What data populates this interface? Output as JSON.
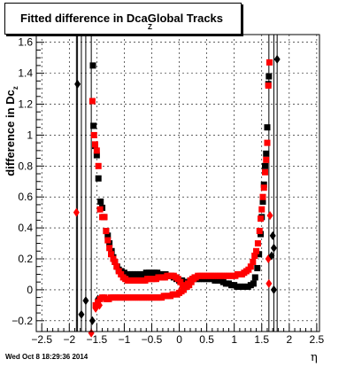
{
  "chart_data": {
    "type": "scatter",
    "title": "Fitted difference in Dca",
    "title_subscript": "Z",
    "title_suffix": "Global Tracks",
    "xlabel": "η",
    "ylabel": "difference in Dc",
    "ylabel_subscript": "z",
    "xlim": [
      -2.6,
      2.55
    ],
    "ylim": [
      -0.27,
      1.65
    ],
    "xticks": [
      -2.5,
      -2,
      -1.5,
      -1,
      -0.5,
      0,
      0.5,
      1,
      1.5,
      2,
      2.5
    ],
    "xtick_labels": [
      "−2.5",
      "−2",
      "−1.5",
      "−1",
      "−0.5",
      "0",
      "0.5",
      "1",
      "1.5",
      "2",
      "2.5"
    ],
    "yticks": [
      -0.2,
      0,
      0.2,
      0.4,
      0.6,
      0.8,
      1,
      1.2,
      1.4,
      1.6
    ],
    "ytick_labels": [
      "−0.2",
      "0",
      "0.2",
      "0.4",
      "0.6",
      "0.8",
      "1",
      "1.2",
      "1.4",
      "1.6"
    ],
    "grid": true,
    "timestamp": "Wed Oct  8 18:29:36 2014",
    "colors": {
      "black_series": "#000000",
      "red_series": "#ff0000"
    },
    "series": [
      {
        "marker": "diamond",
        "color": "#000000",
        "points": [
          [
            -1.85,
            1.33
          ],
          [
            -1.78,
            -0.16
          ],
          [
            -1.7,
            -0.07
          ],
          [
            1.72,
            -0.0
          ],
          [
            1.78,
            1.49
          ]
        ],
        "error_bars": [
          [
            -1.85,
            -0.27,
            1.65
          ],
          [
            -1.78,
            -0.27,
            1.65
          ],
          [
            -1.7,
            -0.27,
            1.65
          ],
          [
            1.72,
            -0.27,
            1.65
          ],
          [
            1.78,
            -0.27,
            1.65
          ]
        ]
      },
      {
        "marker": "diamond",
        "color": "#ff0000",
        "points": [
          [
            -1.87,
            0.5
          ],
          [
            -1.6,
            -0.28
          ],
          [
            -1.52,
            -0.12
          ],
          [
            -1.45,
            -0.1
          ],
          [
            1.63,
            0.04
          ],
          [
            1.65,
            0.48
          ],
          [
            1.62,
            0.2
          ]
        ],
        "error_bars": [
          [
            -1.87,
            -0.27,
            1.65
          ],
          [
            -1.6,
            -0.27,
            1.65
          ],
          [
            1.63,
            -0.27,
            1.65
          ]
        ]
      },
      {
        "marker": "diamond",
        "color": "#000000",
        "points": [
          [
            1.68,
            0.22
          ],
          [
            1.72,
            0.27
          ],
          [
            1.7,
            0.35
          ],
          [
            -1.58,
            -0.2
          ],
          [
            -1.48,
            -0.06
          ]
        ],
        "error_bars": []
      },
      {
        "marker": "square",
        "color": "#000000",
        "points": [
          [
            -1.57,
            1.45
          ],
          [
            -1.56,
            1.06
          ],
          [
            -1.53,
            0.93
          ],
          [
            -1.5,
            0.87
          ],
          [
            -1.47,
            0.72
          ],
          [
            -1.43,
            0.57
          ],
          [
            -1.4,
            0.53
          ],
          [
            -1.37,
            0.47
          ],
          [
            -1.33,
            0.38
          ],
          [
            -1.3,
            0.35
          ],
          [
            -1.27,
            0.3
          ],
          [
            -1.23,
            0.25
          ],
          [
            -1.2,
            0.21
          ],
          [
            -1.17,
            0.18
          ],
          [
            -1.13,
            0.15
          ],
          [
            -1.1,
            0.13
          ],
          [
            -1.05,
            0.12
          ],
          [
            -1.0,
            0.11
          ],
          [
            -0.95,
            0.1
          ],
          [
            -0.9,
            0.1
          ],
          [
            -0.85,
            0.1
          ],
          [
            -0.8,
            0.1
          ],
          [
            -0.75,
            0.1
          ],
          [
            -0.7,
            0.1
          ],
          [
            -0.65,
            0.1
          ],
          [
            -0.6,
            0.11
          ],
          [
            -0.55,
            0.11
          ],
          [
            -0.5,
            0.11
          ],
          [
            -0.45,
            0.11
          ],
          [
            -0.4,
            0.11
          ],
          [
            -0.35,
            0.1
          ],
          [
            -0.3,
            0.1
          ],
          [
            -0.25,
            0.1
          ],
          [
            -0.2,
            0.09
          ],
          [
            -0.15,
            0.09
          ],
          [
            -0.1,
            0.08
          ],
          [
            -0.05,
            0.07
          ],
          [
            0.0,
            0.06
          ],
          [
            0.05,
            0.06
          ],
          [
            0.1,
            0.05
          ],
          [
            0.15,
            0.05
          ],
          [
            0.2,
            0.06
          ],
          [
            0.25,
            0.07
          ],
          [
            0.3,
            0.07
          ],
          [
            0.35,
            0.07
          ],
          [
            0.4,
            0.07
          ],
          [
            0.45,
            0.07
          ],
          [
            0.5,
            0.07
          ],
          [
            0.55,
            0.07
          ],
          [
            0.6,
            0.07
          ],
          [
            0.65,
            0.06
          ],
          [
            0.7,
            0.06
          ],
          [
            0.75,
            0.06
          ],
          [
            0.8,
            0.05
          ],
          [
            0.85,
            0.04
          ],
          [
            0.9,
            0.04
          ],
          [
            0.95,
            0.03
          ],
          [
            1.0,
            0.03
          ],
          [
            1.05,
            0.02
          ],
          [
            1.1,
            0.02
          ],
          [
            1.15,
            0.02
          ],
          [
            1.2,
            0.02
          ],
          [
            1.25,
            0.02
          ],
          [
            1.3,
            0.03
          ],
          [
            1.35,
            0.04
          ],
          [
            1.38,
            0.08
          ],
          [
            1.42,
            0.14
          ],
          [
            1.45,
            0.23
          ],
          [
            1.48,
            0.36
          ],
          [
            1.5,
            0.47
          ],
          [
            1.52,
            0.57
          ],
          [
            1.54,
            0.68
          ],
          [
            1.56,
            0.8
          ],
          [
            1.58,
            0.88
          ],
          [
            1.6,
            1.05
          ],
          [
            1.62,
            1.33
          ],
          [
            1.63,
            1.38
          ]
        ]
      },
      {
        "marker": "square",
        "color": "#ff0000",
        "points": [
          [
            -1.58,
            1.22
          ],
          [
            -1.55,
            1.0
          ],
          [
            -1.53,
            0.94
          ],
          [
            -1.5,
            0.9
          ],
          [
            -1.47,
            0.8
          ],
          [
            -1.44,
            0.52
          ],
          [
            -1.4,
            0.47
          ],
          [
            -1.36,
            0.47
          ],
          [
            -1.33,
            0.38
          ],
          [
            -1.3,
            0.32
          ],
          [
            -1.27,
            0.27
          ],
          [
            -1.24,
            0.23
          ],
          [
            -1.2,
            0.2
          ],
          [
            -1.17,
            0.18
          ],
          [
            -1.14,
            0.15
          ],
          [
            -1.1,
            0.12
          ],
          [
            -1.06,
            0.1
          ],
          [
            -1.02,
            0.08
          ],
          [
            -0.98,
            0.07
          ],
          [
            -0.94,
            0.06
          ],
          [
            -0.9,
            0.06
          ],
          [
            -0.86,
            0.06
          ],
          [
            -0.82,
            0.06
          ],
          [
            -0.78,
            0.06
          ],
          [
            -0.74,
            0.06
          ],
          [
            -0.7,
            0.06
          ],
          [
            -0.66,
            0.06
          ],
          [
            -0.62,
            0.06
          ],
          [
            -0.58,
            0.07
          ],
          [
            -0.54,
            0.07
          ],
          [
            -0.5,
            0.07
          ],
          [
            -0.46,
            0.07
          ],
          [
            -0.42,
            0.07
          ],
          [
            -0.38,
            0.08
          ],
          [
            -0.34,
            0.08
          ],
          [
            -0.3,
            0.08
          ],
          [
            -0.26,
            0.08
          ],
          [
            -0.22,
            0.09
          ],
          [
            -0.18,
            0.09
          ],
          [
            -0.14,
            0.09
          ],
          [
            -0.1,
            0.09
          ],
          [
            -0.06,
            0.08
          ],
          [
            -0.02,
            0.07
          ],
          [
            0.02,
            0.05
          ],
          [
            0.06,
            0.03
          ],
          [
            0.1,
            0.02
          ],
          [
            0.14,
            0.02
          ],
          [
            0.18,
            0.03
          ],
          [
            0.22,
            0.05
          ],
          [
            0.26,
            0.07
          ],
          [
            0.3,
            0.08
          ],
          [
            0.34,
            0.09
          ],
          [
            0.38,
            0.09
          ],
          [
            0.42,
            0.09
          ],
          [
            0.46,
            0.09
          ],
          [
            0.5,
            0.09
          ],
          [
            0.54,
            0.09
          ],
          [
            0.58,
            0.09
          ],
          [
            0.62,
            0.09
          ],
          [
            0.66,
            0.09
          ],
          [
            0.7,
            0.09
          ],
          [
            0.74,
            0.09
          ],
          [
            0.78,
            0.09
          ],
          [
            0.82,
            0.09
          ],
          [
            0.86,
            0.09
          ],
          [
            0.9,
            0.09
          ],
          [
            0.94,
            0.09
          ],
          [
            0.98,
            0.09
          ],
          [
            1.02,
            0.09
          ],
          [
            1.06,
            0.1
          ],
          [
            1.1,
            0.1
          ],
          [
            1.14,
            0.1
          ],
          [
            1.18,
            0.11
          ],
          [
            1.22,
            0.12
          ],
          [
            1.26,
            0.13
          ],
          [
            1.3,
            0.15
          ],
          [
            1.34,
            0.18
          ],
          [
            1.37,
            0.22
          ],
          [
            1.4,
            0.25
          ],
          [
            1.43,
            0.3
          ],
          [
            1.46,
            0.38
          ],
          [
            1.48,
            0.46
          ],
          [
            1.5,
            0.52
          ],
          [
            1.52,
            0.6
          ],
          [
            1.54,
            0.66
          ],
          [
            1.56,
            0.76
          ],
          [
            1.58,
            0.84
          ],
          [
            1.6,
            0.95
          ],
          [
            1.62,
            1.32
          ],
          [
            1.64,
            1.47
          ],
          [
            -1.52,
            -0.1
          ],
          [
            -1.48,
            -0.08
          ],
          [
            -1.44,
            -0.06
          ],
          [
            -1.4,
            -0.05
          ],
          [
            -1.36,
            -0.05
          ],
          [
            -1.32,
            -0.06
          ],
          [
            -1.28,
            -0.06
          ],
          [
            -1.24,
            -0.05
          ],
          [
            -1.2,
            -0.05
          ],
          [
            -1.16,
            -0.05
          ],
          [
            -1.12,
            -0.05
          ],
          [
            -1.08,
            -0.05
          ],
          [
            -1.04,
            -0.05
          ],
          [
            -1.0,
            -0.05
          ],
          [
            -0.96,
            -0.05
          ],
          [
            -0.92,
            -0.05
          ],
          [
            -0.88,
            -0.05
          ],
          [
            -0.84,
            -0.05
          ],
          [
            -0.8,
            -0.05
          ],
          [
            -0.76,
            -0.05
          ],
          [
            -0.72,
            -0.05
          ],
          [
            -0.68,
            -0.05
          ],
          [
            -0.64,
            -0.05
          ],
          [
            -0.6,
            -0.05
          ],
          [
            -0.56,
            -0.05
          ],
          [
            -0.52,
            -0.05
          ],
          [
            -0.48,
            -0.05
          ],
          [
            -0.44,
            -0.05
          ],
          [
            -0.4,
            -0.05
          ],
          [
            -0.36,
            -0.05
          ],
          [
            -0.32,
            -0.05
          ],
          [
            -0.28,
            -0.04
          ],
          [
            -0.24,
            -0.04
          ],
          [
            -0.2,
            -0.04
          ],
          [
            -0.16,
            -0.04
          ],
          [
            -0.12,
            -0.03
          ],
          [
            -0.08,
            -0.03
          ],
          [
            -0.04,
            -0.03
          ],
          [
            0.0,
            -0.02
          ],
          [
            0.04,
            -0.01
          ],
          [
            0.08,
            0.0
          ],
          [
            0.12,
            0.02
          ],
          [
            0.16,
            0.04
          ],
          [
            0.2,
            0.06
          ],
          [
            0.24,
            0.07
          ],
          [
            0.28,
            0.08
          ]
        ]
      }
    ]
  }
}
